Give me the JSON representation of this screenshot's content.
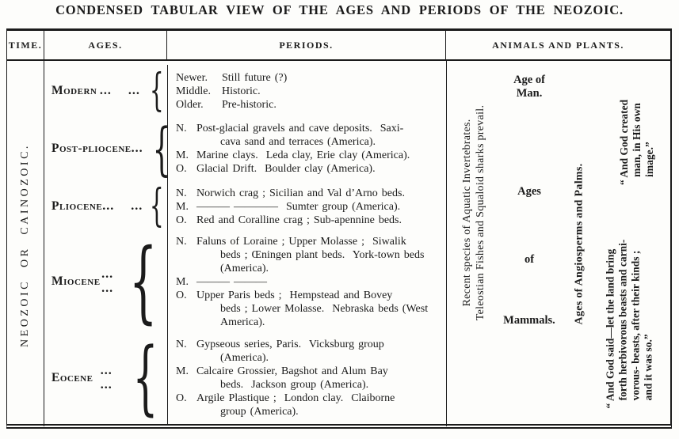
{
  "title": "CONDENSED TABULAR VIEW OF THE AGES AND PERIODS OF THE NEOZOIC.",
  "header": {
    "time": "TIME.",
    "ages": "AGES.",
    "periods": "PERIODS.",
    "animals": "ANIMALS AND PLANTS."
  },
  "time_column": {
    "label": "NEOZOIC OR CAINOZOIC."
  },
  "misc": {
    "brace": "{"
  },
  "rows": [
    {
      "age": "Modern",
      "dots": "... ...",
      "entries": [
        {
          "label": "Newer.",
          "text": "Still future (?)"
        },
        {
          "label": "Middle.",
          "text": "Historic."
        },
        {
          "label": "Older.",
          "text": "Pre-historic."
        }
      ]
    },
    {
      "age": "Post-pliocene",
      "dots": "...",
      "entries": [
        {
          "label": "N.",
          "text": "Post-glacial gravels and cave deposits.  Saxi-\n      cava sand and terraces (America)."
        },
        {
          "label": "M.",
          "text": "Marine clays.  Leda clay, Erie clay (America)."
        },
        {
          "label": "O.",
          "text": "Glacial Drift.  Boulder clay (America)."
        }
      ]
    },
    {
      "age": "Pliocene",
      "dots": "... ...",
      "entries": [
        {
          "label": "N.",
          "text": "Norwich crag ; Sicilian and Val d’Arno beds."
        },
        {
          "label": "M.",
          "text": "——— ————  Sumter group (America)."
        },
        {
          "label": "O.",
          "text": "Red and Coralline crag ; Sub-apennine beds."
        }
      ]
    },
    {
      "age": "Miocene",
      "dots": "... ...",
      "entries": [
        {
          "label": "N.",
          "text": "Faluns of Loraine ; Upper Molasse ;  Siwalik\n      beds ; Œningen plant beds.  York-town beds\n      (America)."
        },
        {
          "label": "M.",
          "text": "——— ———"
        },
        {
          "label": "O.",
          "text": "Upper Paris beds ;  Hempstead and Bovey\n      beds ; Lower Molasse.  Nebraska beds (West\n      America)."
        }
      ]
    },
    {
      "age": "Eocene",
      "dots": "... ...",
      "entries": [
        {
          "label": "N.",
          "text": "Gypseous series, Paris.  Vicksburg group\n      (America)."
        },
        {
          "label": "M.",
          "text": "Calcaire Grossier, Bagshot and Alum Bay\n      beds.  Jackson group (America)."
        },
        {
          "label": "O.",
          "text": "Argile Plastique ;  London clay.  Claiborne\n      group (America)."
        }
      ]
    }
  ],
  "animals": {
    "vertical_left": "Recent species of Aquatic Invertebrates.\nTeleostian Fishes and Squaloid sharks prevail.",
    "age_of_man": "Age of\nMan.",
    "ages": "Ages",
    "of": "of",
    "mammals": "Mammals.",
    "vertical_mid": "Ages of Angiosperms and Palms.",
    "quote_top": "“ And God created\n   man, in His own\n   image.”",
    "quote_bottom": "“ And God said—let the land bring\n   forth herbivorous beasts and carni-\n   vorous- beasts, after their kinds ;\n   and it was so.”"
  },
  "ink_color": "#1b1b1b"
}
